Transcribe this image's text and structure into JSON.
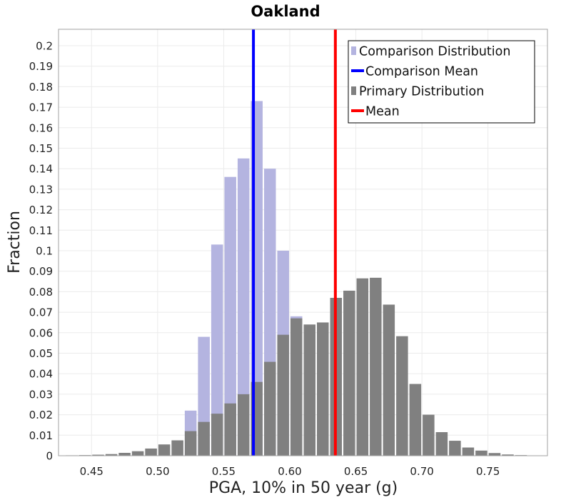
{
  "chart_data": {
    "type": "bar",
    "title": "Oakland",
    "xlabel": "PGA, 10% in 50 year (g)",
    "ylabel": "Fraction",
    "xlim": [
      0.425,
      0.795
    ],
    "ylim": [
      0,
      0.208
    ],
    "bin_width": 0.01,
    "x_ticks": [
      0.45,
      0.5,
      0.55,
      0.6,
      0.65,
      0.7,
      0.75
    ],
    "x_tick_labels": [
      "0.45",
      "0.50",
      "0.55",
      "0.60",
      "0.65",
      "0.70",
      "0.75"
    ],
    "y_ticks": [
      0,
      0.01,
      0.02,
      0.03,
      0.04,
      0.05,
      0.06,
      0.07,
      0.08,
      0.09,
      0.1,
      0.11,
      0.12,
      0.13,
      0.14,
      0.15,
      0.16,
      0.17,
      0.18,
      0.19,
      0.2
    ],
    "y_tick_labels": [
      "0",
      "0.01",
      "0.02",
      "0.03",
      "0.04",
      "0.05",
      "0.06",
      "0.07",
      "0.08",
      "0.09",
      "0.1",
      "0.11",
      "0.12",
      "0.13",
      "0.14",
      "0.15",
      "0.16",
      "0.17",
      "0.18",
      "0.19",
      "0.2"
    ],
    "grid": true,
    "legend_position": "top-right",
    "series": [
      {
        "name": "Comparison Distribution",
        "kind": "histogram",
        "color": "#b4b4e0",
        "x": [
          0.525,
          0.535,
          0.545,
          0.555,
          0.565,
          0.575,
          0.585,
          0.595,
          0.605
        ],
        "values": [
          0.022,
          0.058,
          0.103,
          0.136,
          0.145,
          0.173,
          0.14,
          0.1,
          0.068
        ]
      },
      {
        "name": "Comparison Mean",
        "kind": "vline",
        "color": "#0000ff",
        "value": 0.5725
      },
      {
        "name": "Primary Distribution",
        "kind": "histogram",
        "color": "#808080",
        "x": [
          0.435,
          0.445,
          0.455,
          0.465,
          0.475,
          0.485,
          0.495,
          0.505,
          0.515,
          0.525,
          0.535,
          0.545,
          0.555,
          0.565,
          0.575,
          0.585,
          0.595,
          0.605,
          0.615,
          0.625,
          0.635,
          0.645,
          0.655,
          0.665,
          0.675,
          0.685,
          0.695,
          0.705,
          0.715,
          0.725,
          0.735,
          0.745,
          0.755,
          0.765,
          0.775,
          0.785
        ],
        "values": [
          0.0002,
          0.0003,
          0.0005,
          0.0008,
          0.0014,
          0.0022,
          0.0035,
          0.0055,
          0.0075,
          0.012,
          0.0165,
          0.0205,
          0.0255,
          0.03,
          0.036,
          0.0458,
          0.059,
          0.067,
          0.064,
          0.065,
          0.077,
          0.0805,
          0.0865,
          0.0868,
          0.0737,
          0.0583,
          0.035,
          0.02,
          0.0115,
          0.0073,
          0.004,
          0.0025,
          0.0013,
          0.0006,
          0.0003,
          0.0001
        ]
      },
      {
        "name": "Mean",
        "kind": "vline",
        "color": "#ff0000",
        "value": 0.6345
      }
    ]
  }
}
